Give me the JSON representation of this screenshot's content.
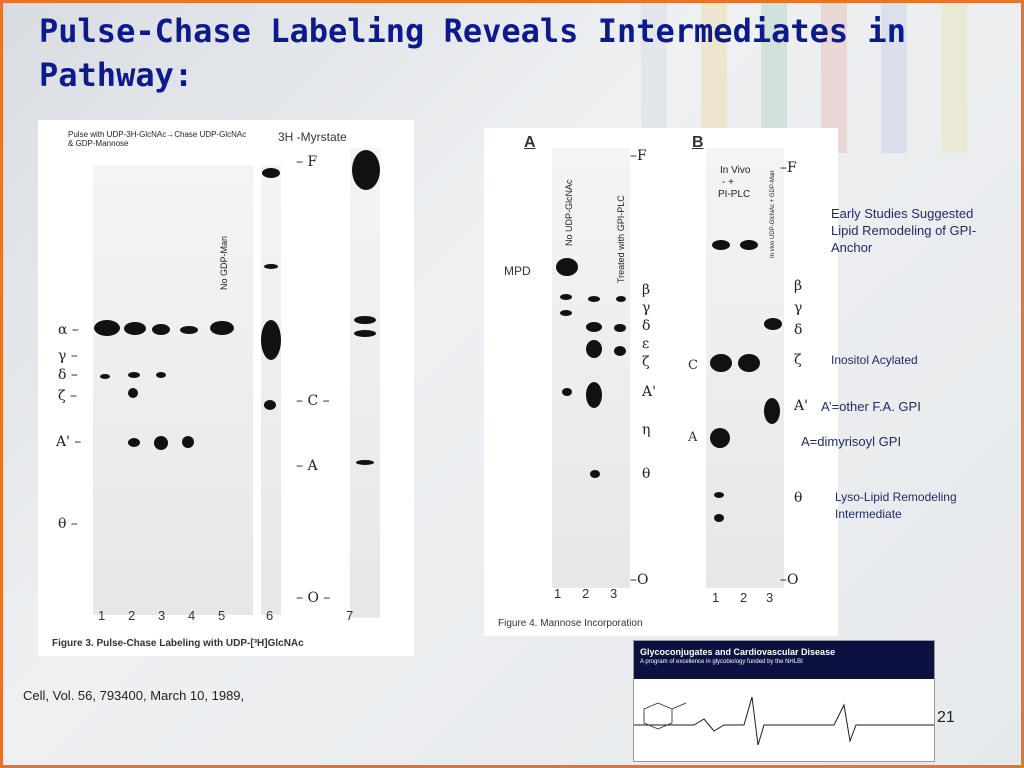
{
  "title": "Pulse-Chase Labeling Reveals Intermediates in Pathway:",
  "fig3": {
    "header_line1": "Pulse with UDP-3H-GlcNAc→Chase UDP-GlcNAc",
    "header_line2": "& GDP-Mannose",
    "myrstate": "3H -Myrstate",
    "no_gdp_man": "No GDP-Man",
    "greek": [
      "α –",
      "γ –",
      "δ –",
      "ζ –",
      "A' –",
      "θ –"
    ],
    "right_marks": [
      "– F",
      "– C –",
      "– A",
      "– O –"
    ],
    "lanes": [
      "1",
      "2",
      "3",
      "4",
      "5",
      "6",
      "7"
    ],
    "caption": "Figure 3. Pulse-Chase Labeling with UDP-[³H]GlcNAc"
  },
  "fig4": {
    "letter_a": "A",
    "letter_b": "B",
    "no_udp": "No UDP-GlcNAc",
    "treated": "Treated with GPI-PLC",
    "mpd": "MPD",
    "f_mark": "–F",
    "marks_a": [
      "β",
      "γ",
      "δ",
      "ε",
      "ζ",
      "A'",
      "η",
      "θ"
    ],
    "o_mark": "–O",
    "in_vivo": "In Vivo",
    "minus_plus": "-     +",
    "pi_plc": "PI-PLC",
    "in_vivo_udp": "In vivo UDP-GlcNAc + GDP-Man",
    "marks_b": [
      "β",
      "γ",
      "δ",
      "ζ",
      "A'",
      "θ"
    ],
    "c_label": "C",
    "a_label": "A",
    "lanes_a": [
      "1",
      "2",
      "3"
    ],
    "lanes_b": [
      "1",
      "2",
      "3"
    ],
    "caption": "Figure 4. Mannose Incorporation"
  },
  "notes": {
    "early": "Early Studies Suggested Lipid Remodeling of GPI-Anchor",
    "inositol": "Inositol Acylated",
    "a_prime": "A’=other F.A. GPI",
    "a_dimyr": "A=dimyrisoyl GPI",
    "lyso": "Lyso-Lipid Remodeling Intermediate"
  },
  "citation": "Cell, Vol. 56, 793400, March 10, 1989,",
  "banner": {
    "title": "Glycoconjugates and Cardiovascular Disease",
    "subtitle": "A program of excellence in glycobiology funded by the NHLBI"
  },
  "page_number": "21",
  "colors": {
    "title": "#0d1a8c",
    "border": "#e8732a",
    "banner": "#0b1140"
  }
}
